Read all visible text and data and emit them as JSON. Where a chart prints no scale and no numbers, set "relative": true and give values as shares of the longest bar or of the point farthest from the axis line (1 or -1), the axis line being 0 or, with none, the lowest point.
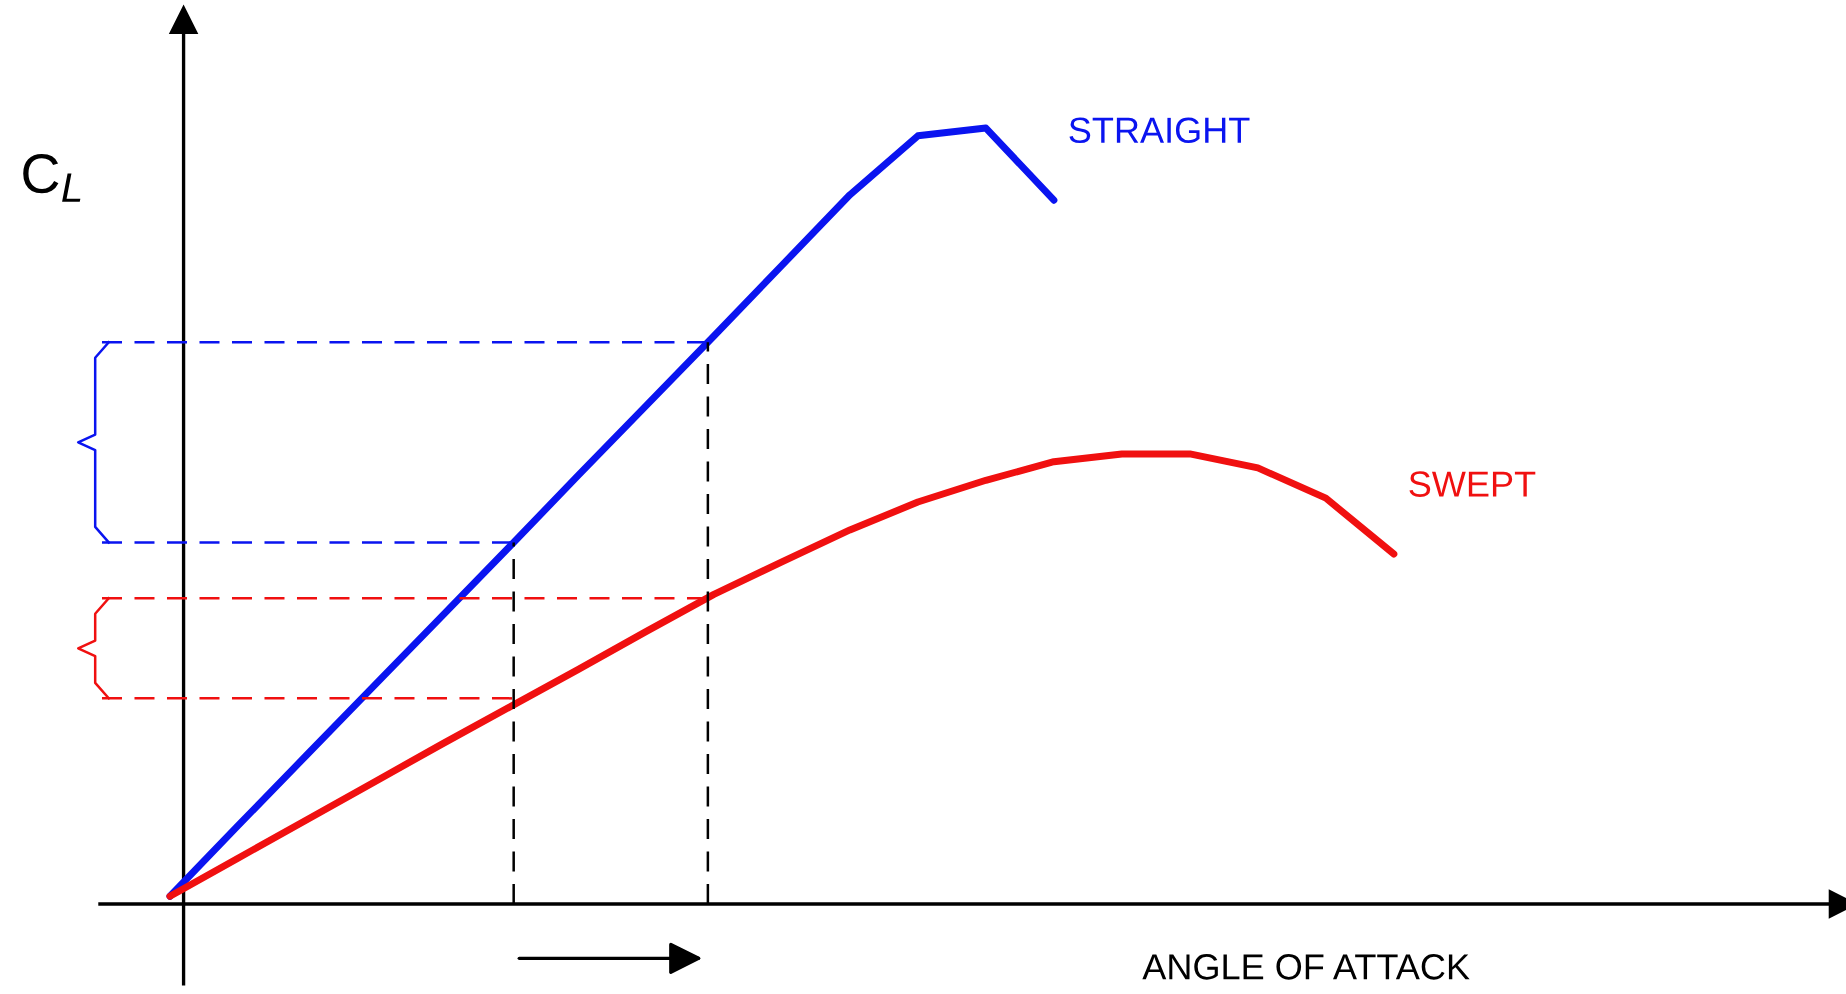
{
  "chart_data": {
    "type": "line",
    "relative": true,
    "xlabel": "ANGLE OF ATTACK",
    "ylabel": "C$_{L}$",
    "categories": [
      null,
      null,
      null,
      null,
      null,
      null,
      null,
      null,
      null,
      null,
      null,
      null,
      null,
      null,
      null,
      null,
      null,
      null,
      null
    ],
    "series": [
      {
        "name": "STRAIGHT",
        "color": "#0a14f0",
        "values": [
          0.01,
          0.101,
          0.191,
          0.281,
          0.371,
          0.461,
          0.552,
          0.642,
          0.732,
          0.823,
          0.914,
          0.99,
          1.0,
          0.907,
          null,
          null,
          null,
          null,
          null
        ]
      },
      {
        "name": "SWEPT",
        "color": "#f01010",
        "values": [
          0.01,
          0.059,
          0.108,
          0.157,
          0.206,
          0.254,
          0.302,
          0.351,
          0.399,
          0.441,
          0.482,
          0.518,
          0.546,
          0.57,
          0.58,
          0.58,
          0.562,
          0.523,
          0.451
        ]
      }
    ],
    "ref_lines": [
      {
        "axis": "y",
        "value": 0.724,
        "color": "#0a14f0",
        "line_style": "dashed"
      },
      {
        "axis": "y",
        "value": 0.466,
        "color": "#0a14f0",
        "line_style": "dashed"
      },
      {
        "axis": "y",
        "value": 0.394,
        "color": "#f01010",
        "line_style": "dashed"
      },
      {
        "axis": "y",
        "value": 0.265,
        "color": "#f01010",
        "line_style": "dashed"
      }
    ],
    "legend": false,
    "line_style": "solid",
    "marker": "none"
  }
}
